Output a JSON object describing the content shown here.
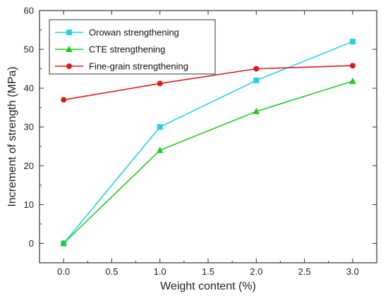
{
  "chart_data": {
    "type": "line",
    "x": [
      0.0,
      1.0,
      2.0,
      3.0
    ],
    "xlabel": "Weight content (%)",
    "ylabel": "Increment of strength (MPa)",
    "xlim": [
      -0.25,
      3.25
    ],
    "ylim": [
      -5,
      60
    ],
    "xticks": [
      0.0,
      0.5,
      1.0,
      1.5,
      2.0,
      2.5,
      3.0
    ],
    "xtick_labels": [
      "0.0",
      "0.5",
      "1.0",
      "1.5",
      "2.0",
      "2.5",
      "3.0"
    ],
    "yticks": [
      0,
      10,
      20,
      30,
      40,
      50,
      60
    ],
    "ytick_labels": [
      "0",
      "10",
      "20",
      "30",
      "40",
      "50",
      "60"
    ],
    "grid": false,
    "legend_position": "top-left",
    "series": [
      {
        "name": "Orowan strengthening",
        "values": [
          0,
          30,
          42,
          52
        ],
        "color": "#22d3e6",
        "marker": "square"
      },
      {
        "name": "CTE strengthening",
        "values": [
          0,
          24,
          34,
          41.8
        ],
        "color": "#22cc22",
        "marker": "triangle"
      },
      {
        "name": "Fine-grain strengthening",
        "values": [
          37,
          41.2,
          45,
          45.8
        ],
        "color": "#e01818",
        "marker": "circle"
      }
    ]
  }
}
